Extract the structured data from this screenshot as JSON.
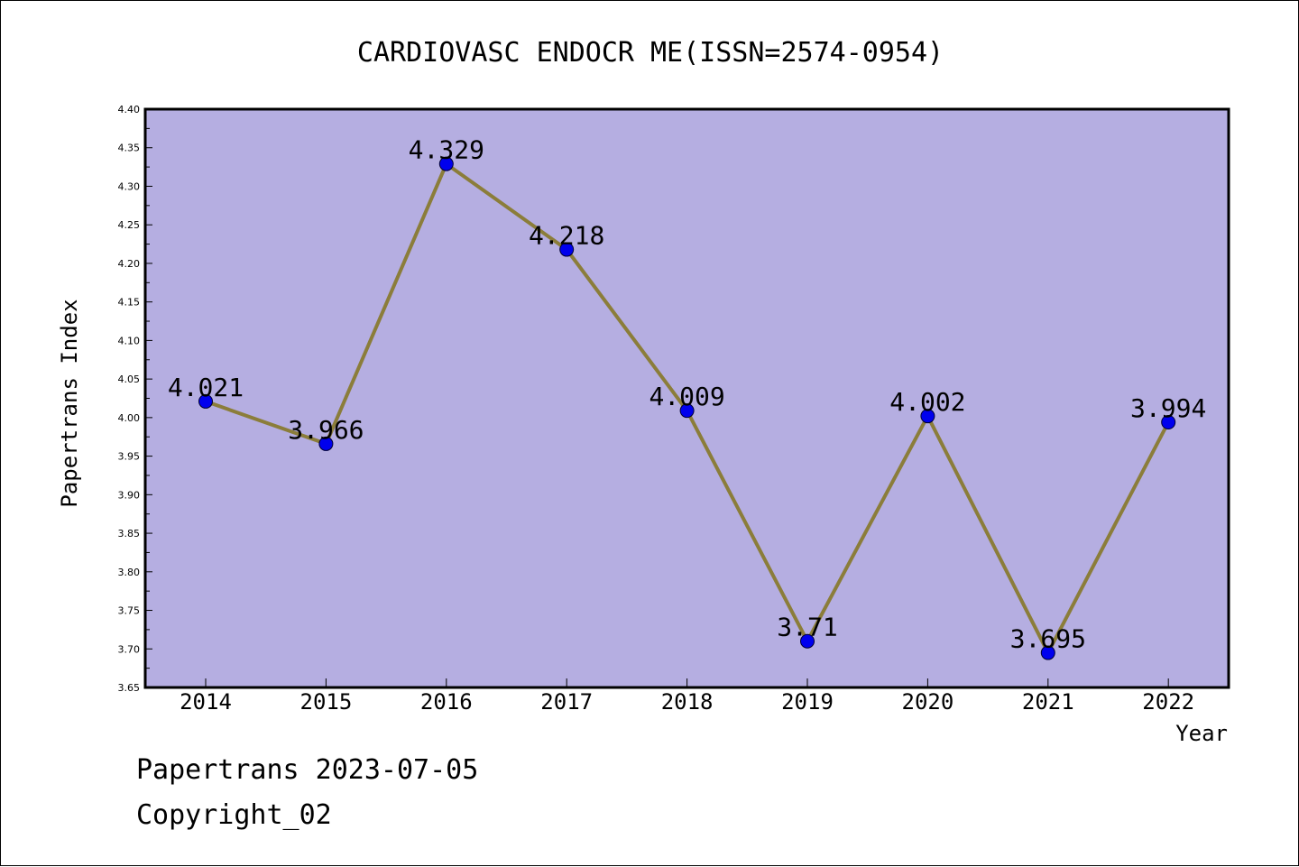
{
  "chart_data": {
    "type": "line",
    "title": "CARDIOVASC ENDOCR ME(ISSN=2574-0954)",
    "xlabel": "Year",
    "ylabel": "Papertrans Index",
    "categories": [
      "2014",
      "2015",
      "2016",
      "2017",
      "2018",
      "2019",
      "2020",
      "2021",
      "2022"
    ],
    "series": [
      {
        "values": [
          4.021,
          3.966,
          4.329,
          4.218,
          4.009,
          3.71,
          4.002,
          3.695,
          3.994
        ],
        "labels": [
          "4.021",
          "3.966",
          "4.329",
          "4.218",
          "4.009",
          "3.71",
          "4.002",
          "3.695",
          "3.994"
        ]
      }
    ],
    "ylim": [
      3.65,
      4.4
    ],
    "yticks": [
      "3.65",
      "3.70",
      "3.75",
      "3.80",
      "3.85",
      "3.90",
      "3.95",
      "4.00",
      "4.05",
      "4.10",
      "4.15",
      "4.20",
      "4.25",
      "4.30",
      "4.35",
      "4.40"
    ],
    "grid": false,
    "colors": {
      "plot_background": "#b5aee1",
      "line": "#8b7d3a",
      "marker": "#0000ee"
    }
  },
  "footer": {
    "date_text": "Papertrans 2023-07-05",
    "copyright_text": "Copyright_02"
  }
}
